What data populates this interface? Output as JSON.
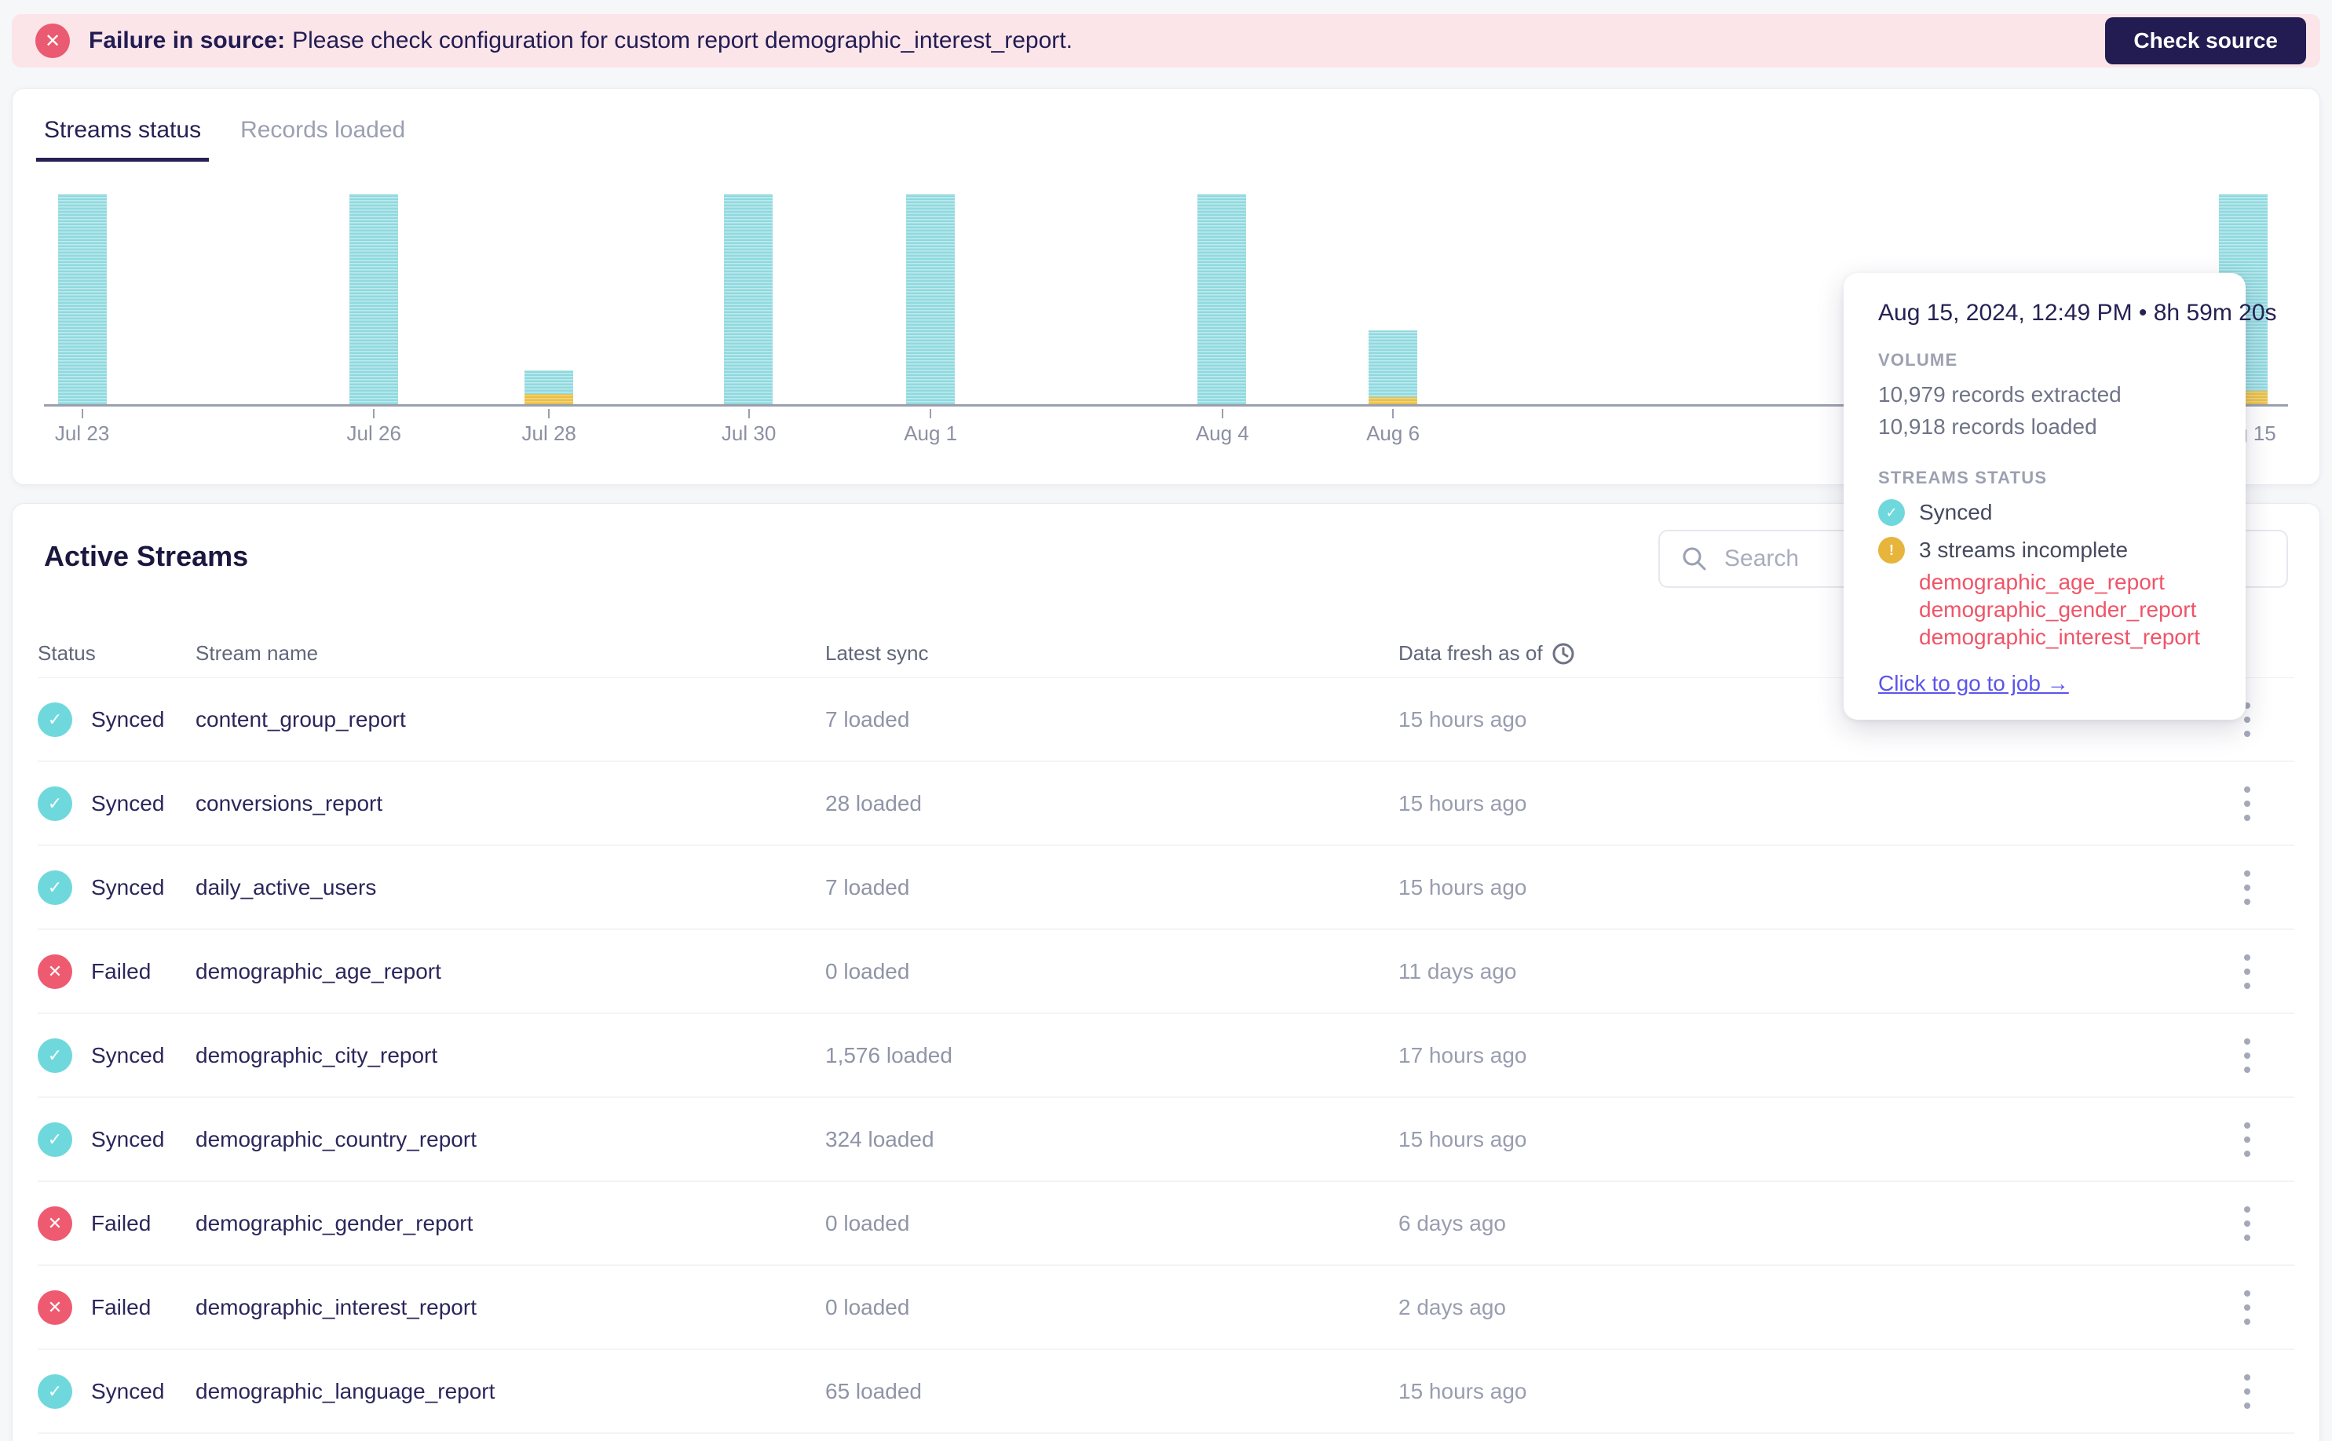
{
  "banner": {
    "message_bold": "Failure in source:",
    "message_rest": "Please check configuration for custom report demographic_interest_report.",
    "action_label": "Check source",
    "bg_color": "#fbe5e9",
    "icon_color": "#ea5a70",
    "button_color": "#221c53"
  },
  "tabs": [
    {
      "label": "Streams status",
      "active": true
    },
    {
      "label": "Records loaded",
      "active": false
    }
  ],
  "chart_data": {
    "type": "bar",
    "stacked": true,
    "x": [
      "Jul 23",
      "Jul 26",
      "Jul 28",
      "Jul 30",
      "Aug 1",
      "Aug 4",
      "Aug 6",
      "Aug 15"
    ],
    "x_positions_pct": [
      1.7,
      14.7,
      22.5,
      31.4,
      39.5,
      52.5,
      60.1,
      98.0
    ],
    "bar_total_height_pct": [
      100,
      100,
      16,
      100,
      100,
      100,
      35,
      100
    ],
    "bar_incomplete_height_pct": [
      0,
      0,
      5,
      0,
      0,
      0,
      3.5,
      6.5
    ],
    "note": "teal striped = synced sync volume, yellow segment at base = incomplete streams",
    "hovered_bar": {
      "date": "Aug 15",
      "records_extracted": "10,979",
      "records_loaded": "10,918"
    },
    "colors": {
      "bar": "#8fd9df",
      "bar_stripe": "#c0eaed",
      "incomplete": "#e9c049",
      "incomplete_stripe": "#f1d57e",
      "axis": "#9aa0ae",
      "tick_label": "#8b90a2"
    }
  },
  "tooltip": {
    "title": "Aug 15, 2024, 12:49 PM • 8h 59m 20s",
    "volume_label": "VOLUME",
    "extracted": "10,979 records extracted",
    "loaded": "10,918 records loaded",
    "streams_status_label": "STREAMS STATUS",
    "synced_label": "Synced",
    "incomplete_label": "3 streams incomplete",
    "incomplete_streams": [
      "demographic_age_report",
      "demographic_gender_report",
      "demographic_interest_report"
    ],
    "link_label": "Click to go to job →"
  },
  "streams": {
    "title": "Active Streams",
    "search_placeholder": "Search",
    "columns": [
      "Status",
      "Stream name",
      "Latest sync",
      "Data fresh as of"
    ],
    "status_colors": {
      "Synced": "#6fd8dc",
      "Failed": "#ee5b71"
    },
    "rows": [
      {
        "status": "Synced",
        "name": "content_group_report",
        "latest_sync": "7 loaded",
        "fresh": "15 hours ago"
      },
      {
        "status": "Synced",
        "name": "conversions_report",
        "latest_sync": "28 loaded",
        "fresh": "15 hours ago"
      },
      {
        "status": "Synced",
        "name": "daily_active_users",
        "latest_sync": "7 loaded",
        "fresh": "15 hours ago"
      },
      {
        "status": "Failed",
        "name": "demographic_age_report",
        "latest_sync": "0 loaded",
        "fresh": "11 days ago"
      },
      {
        "status": "Synced",
        "name": "demographic_city_report",
        "latest_sync": "1,576 loaded",
        "fresh": "17 hours ago"
      },
      {
        "status": "Synced",
        "name": "demographic_country_report",
        "latest_sync": "324 loaded",
        "fresh": "15 hours ago"
      },
      {
        "status": "Failed",
        "name": "demographic_gender_report",
        "latest_sync": "0 loaded",
        "fresh": "6 days ago"
      },
      {
        "status": "Failed",
        "name": "demographic_interest_report",
        "latest_sync": "0 loaded",
        "fresh": "2 days ago"
      },
      {
        "status": "Synced",
        "name": "demographic_language_report",
        "latest_sync": "65 loaded",
        "fresh": "15 hours ago"
      }
    ]
  }
}
